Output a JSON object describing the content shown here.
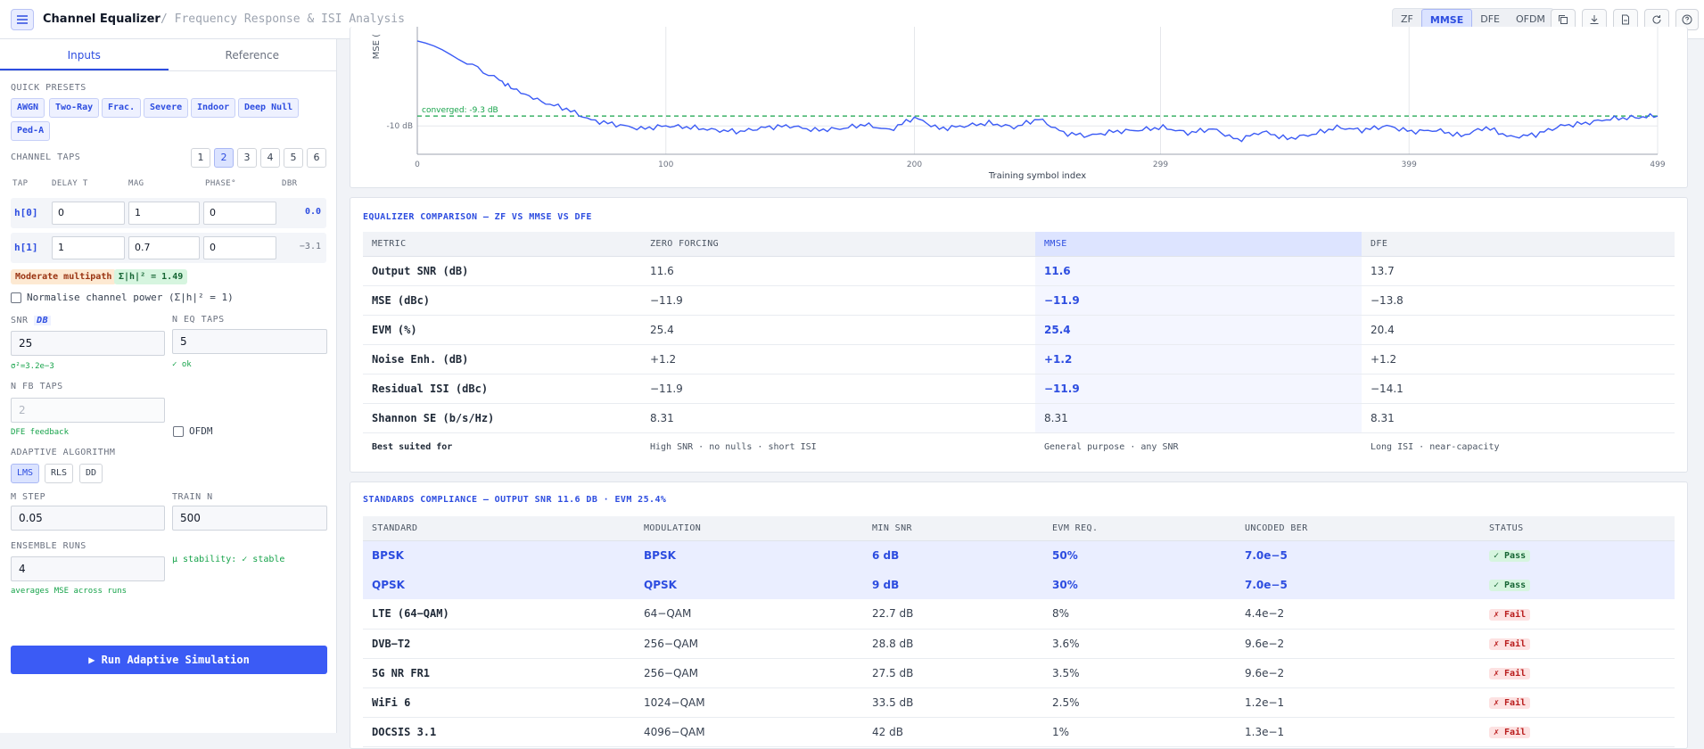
{
  "header": {
    "title": "Channel Equalizer",
    "subtitle": "/ Frequency Response & ISI Analysis",
    "modes": [
      "ZF",
      "MMSE",
      "DFE",
      "OFDM"
    ],
    "active_mode": "MMSE"
  },
  "sidebar": {
    "tabs": [
      "Inputs",
      "Reference"
    ],
    "quick_presets_label": "QUICK PRESETS",
    "presets": [
      "AWGN",
      "Two-Ray",
      "Frac.",
      "Severe",
      "Indoor",
      "Deep Null",
      "Ped-A"
    ],
    "channel_taps_label": "CHANNEL TAPS",
    "tap_counts": [
      "1",
      "2",
      "3",
      "4",
      "5",
      "6"
    ],
    "active_tap_count": "2",
    "tap_columns": [
      "TAP",
      "DELAY T",
      "MAG",
      "PHASE°",
      "DBR"
    ],
    "taps": [
      {
        "name": "h[0]",
        "delay": "0",
        "mag": "1",
        "phase": "0",
        "dbr": "0.0"
      },
      {
        "name": "h[1]",
        "delay": "1",
        "mag": "0.7",
        "phase": "0",
        "dbr": "−3.1"
      }
    ],
    "multipath_badge": "Moderate multipath",
    "power_badge": "Σ|h|² = 1.49",
    "normalise_label": "Normalise channel power (Σ|h|² = 1)",
    "snr_label": "SNR",
    "snr_unit": "DB",
    "snr_value": "25",
    "snr_hint": "σ²=3.2e−3",
    "neq_label": "N EQ TAPS",
    "neq_value": "5",
    "neq_hint": "✓ ok",
    "nfb_label": "N FB TAPS",
    "nfb_value": "2",
    "nfb_hint": "DFE feedback",
    "ofdm_label": "OFDM",
    "algorithm_label": "ADAPTIVE ALGORITHM",
    "algorithms": [
      "LMS",
      "RLS",
      "DD"
    ],
    "active_algorithm": "LMS",
    "mu_label": "Μ STEP",
    "mu_value": "0.05",
    "train_label": "TRAIN N",
    "train_value": "500",
    "ensemble_label": "ENSEMBLE RUNS",
    "ensemble_value": "4",
    "ensemble_hint": "averages MSE across runs",
    "stability_hint": "μ stability: ✓ stable",
    "run_label": "▶ Run Adaptive Simulation"
  },
  "chart_data": {
    "type": "line",
    "ylabel": "MSE (",
    "xlabel": "Training symbol index",
    "x_ticks": [
      "0",
      "100",
      "200",
      "299",
      "399",
      "499"
    ],
    "y_ticks": [
      "-10 dB"
    ],
    "xlim": [
      0,
      499
    ],
    "converged_label": "converged: -9.3 dB",
    "converged_value": -9.3,
    "series": [
      {
        "x": [
          0,
          20,
          33,
          40,
          50,
          60,
          70,
          80,
          90,
          100,
          110,
          120,
          130,
          140,
          150,
          160,
          170,
          180,
          190,
          200,
          210,
          220,
          230,
          240,
          250,
          260,
          270,
          280,
          290,
          300,
          310,
          320,
          330,
          340,
          350,
          360,
          370,
          380,
          390,
          400,
          410,
          420,
          430,
          440,
          450,
          460,
          470,
          480,
          490,
          499
        ],
        "y": [
          -4.0,
          -5.5,
          -6.8,
          -7.5,
          -8.3,
          -8.8,
          -9.6,
          -9.9,
          -10.2,
          -10.0,
          -10.1,
          -10.3,
          -10.4,
          -10.1,
          -10.0,
          -10.3,
          -10.2,
          -9.9,
          -10.3,
          -9.4,
          -10.2,
          -10.0,
          -9.8,
          -10.1,
          -9.5,
          -10.5,
          -10.7,
          -10.4,
          -10.3,
          -10.1,
          -10.5,
          -10.2,
          -11.0,
          -10.4,
          -10.9,
          -10.6,
          -10.1,
          -10.3,
          -10.0,
          -10.4,
          -10.3,
          -10.7,
          -10.1,
          -10.8,
          -10.6,
          -10.0,
          -9.8,
          -9.5,
          -9.4,
          -9.3
        ]
      }
    ]
  },
  "comparison": {
    "title": "EQUALIZER COMPARISON — ZF VS MMSE VS DFE",
    "columns": [
      "METRIC",
      "ZERO FORCING",
      "MMSE",
      "DFE"
    ],
    "rows": [
      [
        "Output SNR (dB)",
        "11.6",
        "11.6",
        "13.7"
      ],
      [
        "MSE (dBc)",
        "−11.9",
        "−11.9",
        "−13.8"
      ],
      [
        "EVM (%)",
        "25.4",
        "25.4",
        "20.4"
      ],
      [
        "Noise Enh. (dB)",
        "+1.2",
        "+1.2",
        "+1.2"
      ],
      [
        "Residual ISI (dBc)",
        "−11.9",
        "−11.9",
        "−14.1"
      ],
      [
        "Shannon SE (b/s/Hz)",
        "8.31",
        "8.31",
        "8.31"
      ]
    ],
    "best_row": [
      "Best suited for",
      "High SNR · no nulls · short ISI",
      "General purpose · any SNR",
      "Long ISI · near-capacity"
    ]
  },
  "standards": {
    "title": "STANDARDS COMPLIANCE — OUTPUT SNR 11.6 DB · EVM 25.4%",
    "columns": [
      "STANDARD",
      "MODULATION",
      "MIN SNR",
      "EVM REQ.",
      "UNCODED BER",
      "STATUS"
    ],
    "rows": [
      {
        "cells": [
          "BPSK",
          "BPSK",
          "6 dB",
          "50%",
          "7.0e−5"
        ],
        "status": "✓ Pass",
        "pass": true
      },
      {
        "cells": [
          "QPSK",
          "QPSK",
          "9 dB",
          "30%",
          "7.0e−5"
        ],
        "status": "✓ Pass",
        "pass": true
      },
      {
        "cells": [
          "LTE (64−QAM)",
          "64−QAM",
          "22.7 dB",
          "8%",
          "4.4e−2"
        ],
        "status": "✗ Fail",
        "pass": false
      },
      {
        "cells": [
          "DVB−T2",
          "256−QAM",
          "28.8 dB",
          "3.6%",
          "9.6e−2"
        ],
        "status": "✗ Fail",
        "pass": false
      },
      {
        "cells": [
          "5G NR FR1",
          "256−QAM",
          "27.5 dB",
          "3.5%",
          "9.6e−2"
        ],
        "status": "✗ Fail",
        "pass": false
      },
      {
        "cells": [
          "WiFi 6",
          "1024−QAM",
          "33.5 dB",
          "2.5%",
          "1.2e−1"
        ],
        "status": "✗ Fail",
        "pass": false
      },
      {
        "cells": [
          "DOCSIS 3.1",
          "4096−QAM",
          "42 dB",
          "1%",
          "1.3e−1"
        ],
        "status": "✗ Fail",
        "pass": false
      }
    ]
  },
  "colors": {
    "accent": "#2d4de0",
    "line": "#3b5bf5",
    "converged": "#16a34a",
    "pass": "#166534",
    "fail": "#b91c1c"
  }
}
